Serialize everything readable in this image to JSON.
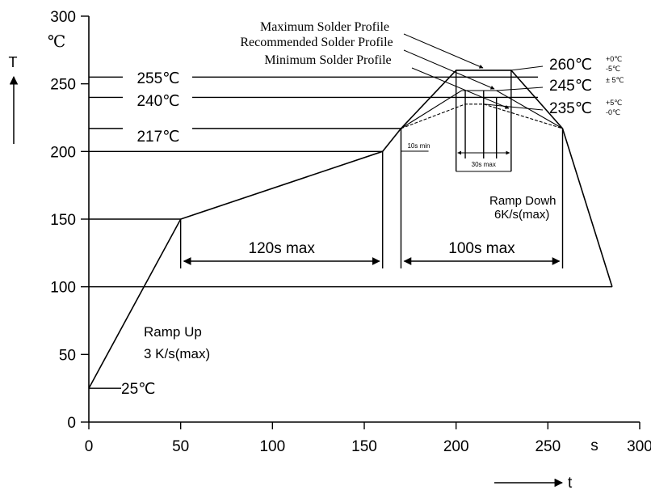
{
  "chart_data": {
    "type": "line",
    "xlim": [
      0,
      300
    ],
    "ylim": [
      0,
      300
    ],
    "x_ticks": [
      0,
      50,
      100,
      150,
      200,
      250,
      300
    ],
    "y_ticks": [
      0,
      50,
      100,
      150,
      200,
      250,
      300
    ],
    "x_unit": "s",
    "x_axis_symbol": "t",
    "y_unit": "℃",
    "y_axis_symbol": "T",
    "grid": false,
    "series": [
      {
        "name": "Maximum Solder Profile",
        "points": [
          [
            0,
            25
          ],
          [
            50,
            150
          ],
          [
            160,
            200
          ],
          [
            170,
            217
          ],
          [
            200,
            260
          ],
          [
            230,
            260
          ],
          [
            258,
            217
          ],
          [
            285,
            100
          ]
        ]
      },
      {
        "name": "Recommended Solder Profile",
        "points": [
          [
            170,
            217
          ],
          [
            203,
            245
          ],
          [
            222,
            245
          ],
          [
            258,
            217
          ]
        ]
      },
      {
        "name": "Minimum Solder Profile",
        "points": [
          [
            170,
            217
          ],
          [
            205,
            235
          ],
          [
            215,
            235
          ],
          [
            258,
            217
          ]
        ]
      }
    ],
    "temperature_labels": [
      "25℃",
      "217℃",
      "240℃",
      "255℃"
    ],
    "peak_labels": [
      {
        "main": "260℃",
        "tol_top": "+0℃",
        "tol_bottom": "-5℃"
      },
      {
        "main": "245℃",
        "tol_top": "± 5℃",
        "tol_bottom": ""
      },
      {
        "main": "235℃",
        "tol_top": "+5℃",
        "tol_bottom": "-0℃"
      }
    ],
    "durations": [
      "120s max",
      "100s max",
      "10s min",
      "30s max"
    ],
    "annotations": {
      "ramp_up": [
        "Ramp Up",
        "3 K/s(max)"
      ],
      "ramp_down": [
        "Ramp Dowh",
        "6K/s(max)"
      ]
    }
  }
}
